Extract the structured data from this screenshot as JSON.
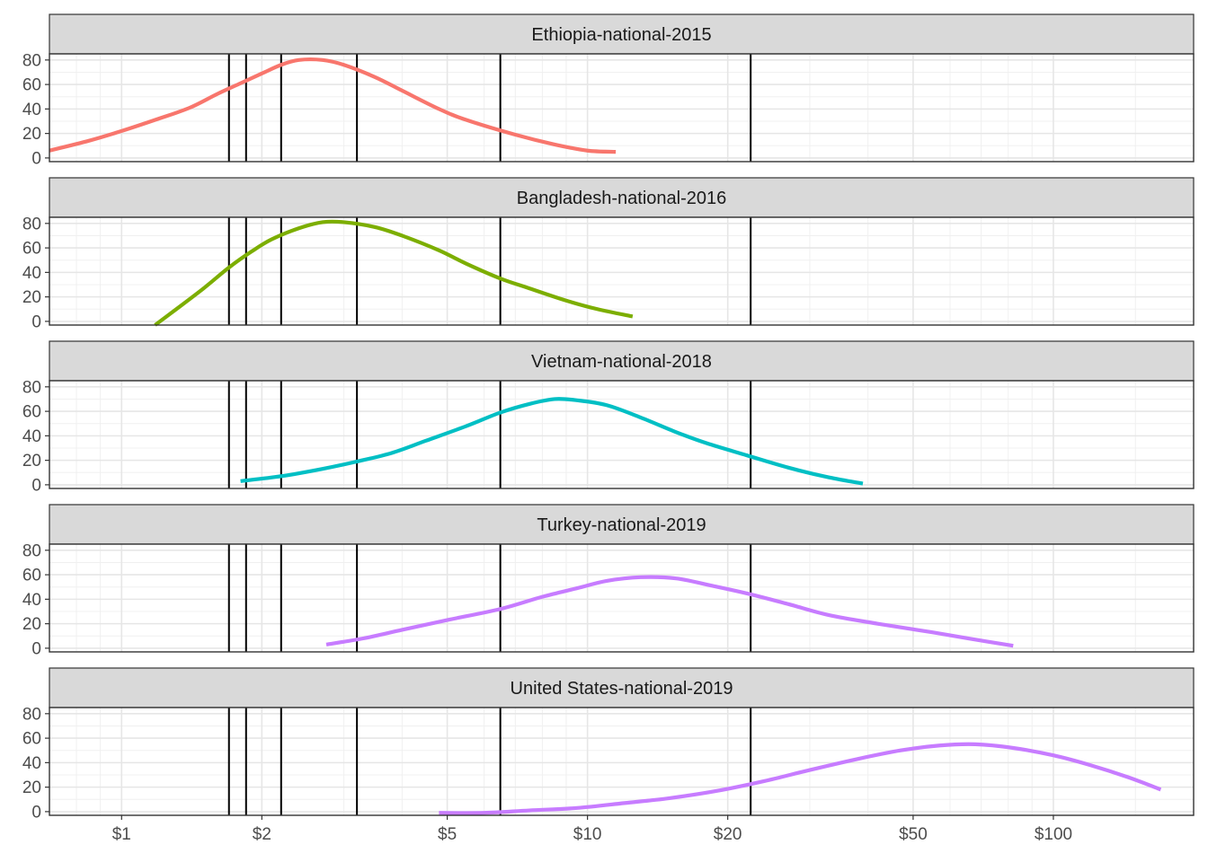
{
  "chart_data": {
    "type": "line",
    "x_scale": "log10",
    "xlim": [
      0.7,
      200
    ],
    "ylim": [
      -3,
      85
    ],
    "grid": true,
    "legend": "none",
    "x_ticks": [
      {
        "value": 1,
        "label": "$1"
      },
      {
        "value": 2,
        "label": "$2"
      },
      {
        "value": 5,
        "label": "$5"
      },
      {
        "value": 10,
        "label": "$10"
      },
      {
        "value": 20,
        "label": "$20"
      },
      {
        "value": 50,
        "label": "$50"
      },
      {
        "value": 100,
        "label": "$100"
      }
    ],
    "y_ticks": [
      {
        "value": 0,
        "label": "0"
      },
      {
        "value": 20,
        "label": "20"
      },
      {
        "value": 40,
        "label": "40"
      },
      {
        "value": 60,
        "label": "60"
      },
      {
        "value": 80,
        "label": "80"
      }
    ],
    "reference_lines_x": [
      1.7,
      1.85,
      2.2,
      3.2,
      6.5,
      22.4
    ],
    "panels": [
      {
        "strip": "Ethiopia-national-2015",
        "color": "#F8766D",
        "points": [
          [
            0.7,
            6
          ],
          [
            0.85,
            14
          ],
          [
            1.0,
            22
          ],
          [
            1.2,
            32
          ],
          [
            1.4,
            41
          ],
          [
            1.6,
            52
          ],
          [
            1.8,
            61
          ],
          [
            2.0,
            69
          ],
          [
            2.2,
            76
          ],
          [
            2.4,
            80
          ],
          [
            2.7,
            80
          ],
          [
            3.0,
            76
          ],
          [
            3.5,
            66
          ],
          [
            4.0,
            55
          ],
          [
            4.8,
            40
          ],
          [
            5.5,
            31
          ],
          [
            7.0,
            19
          ],
          [
            8.5,
            11
          ],
          [
            10.0,
            6
          ],
          [
            11.5,
            5
          ]
        ]
      },
      {
        "strip": "Bangladesh-national-2016",
        "color": "#7CAE00",
        "points": [
          [
            1.18,
            -3
          ],
          [
            1.3,
            9
          ],
          [
            1.5,
            27
          ],
          [
            1.7,
            44
          ],
          [
            1.9,
            57
          ],
          [
            2.1,
            67
          ],
          [
            2.4,
            76
          ],
          [
            2.7,
            81
          ],
          [
            3.0,
            81
          ],
          [
            3.5,
            77
          ],
          [
            4.0,
            70
          ],
          [
            4.8,
            58
          ],
          [
            5.5,
            47
          ],
          [
            6.5,
            35
          ],
          [
            7.5,
            27
          ],
          [
            9.0,
            17
          ],
          [
            10.5,
            10
          ],
          [
            12.5,
            4
          ]
        ]
      },
      {
        "strip": "Vietnam-national-2018",
        "color": "#00BFC4",
        "points": [
          [
            1.8,
            3
          ],
          [
            2.2,
            7
          ],
          [
            2.7,
            13
          ],
          [
            3.2,
            19
          ],
          [
            3.8,
            26
          ],
          [
            4.5,
            36
          ],
          [
            5.5,
            48
          ],
          [
            6.5,
            59
          ],
          [
            7.5,
            66
          ],
          [
            8.5,
            70
          ],
          [
            9.5,
            69
          ],
          [
            11.0,
            65
          ],
          [
            13.0,
            55
          ],
          [
            15.5,
            43
          ],
          [
            18.0,
            34
          ],
          [
            22.0,
            24
          ],
          [
            27.0,
            14
          ],
          [
            33.0,
            6
          ],
          [
            39.0,
            1
          ]
        ]
      },
      {
        "strip": "Turkey-national-2019",
        "color": "#C77CFF",
        "points": [
          [
            2.75,
            3
          ],
          [
            3.3,
            8
          ],
          [
            4.0,
            15
          ],
          [
            5.0,
            23
          ],
          [
            6.5,
            32
          ],
          [
            8.0,
            42
          ],
          [
            9.5,
            49
          ],
          [
            11.0,
            55
          ],
          [
            13.0,
            58
          ],
          [
            15.5,
            57
          ],
          [
            18.5,
            51
          ],
          [
            22.4,
            44
          ],
          [
            27.0,
            36
          ],
          [
            33.0,
            27
          ],
          [
            42.0,
            20
          ],
          [
            55.0,
            13
          ],
          [
            68.0,
            7
          ],
          [
            82.0,
            2
          ]
        ]
      },
      {
        "strip": "United States-national-2019",
        "color": "#C77CFF",
        "points": [
          [
            4.8,
            -1
          ],
          [
            6.0,
            -1
          ],
          [
            7.5,
            1
          ],
          [
            9.5,
            3
          ],
          [
            12.0,
            7
          ],
          [
            15.0,
            11
          ],
          [
            19.0,
            17
          ],
          [
            24.0,
            25
          ],
          [
            30.0,
            34
          ],
          [
            38.0,
            43
          ],
          [
            47.0,
            50
          ],
          [
            57.0,
            54
          ],
          [
            68.0,
            55
          ],
          [
            82.0,
            52
          ],
          [
            100.0,
            46
          ],
          [
            120.0,
            38
          ],
          [
            145.0,
            28
          ],
          [
            170.0,
            18
          ]
        ]
      }
    ]
  }
}
